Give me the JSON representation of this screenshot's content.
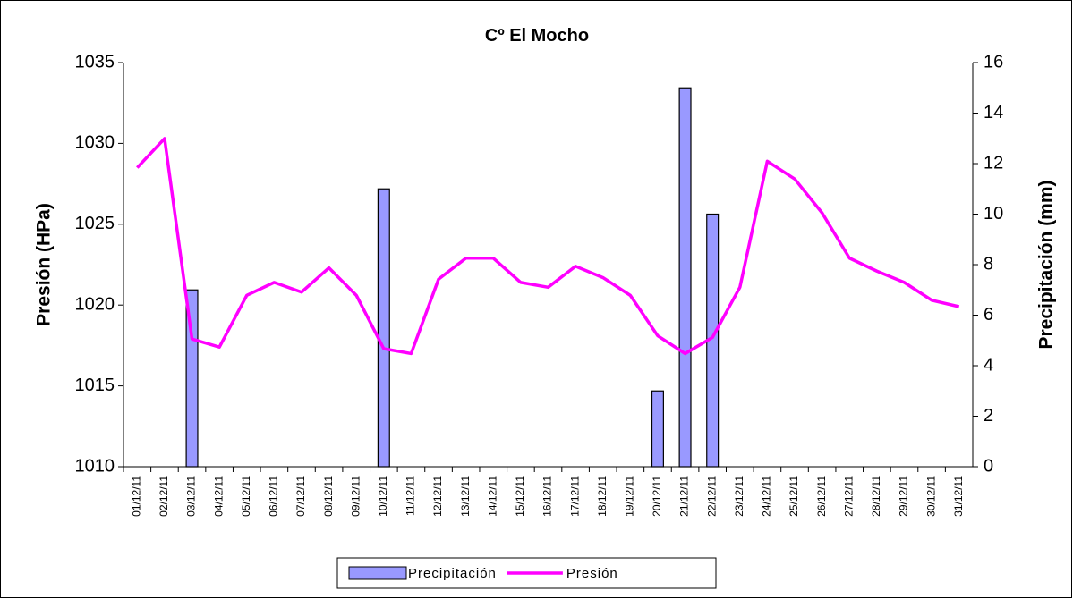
{
  "chart_data": {
    "type": "bar_line",
    "title": "Cº El Mocho",
    "ylabel": "Presión (HPa)",
    "y2label": "Precipitación (mm)",
    "categories": [
      "01/12/11",
      "02/12/11",
      "03/12/11",
      "04/12/11",
      "05/12/11",
      "06/12/11",
      "07/12/11",
      "08/12/11",
      "09/12/11",
      "10/12/11",
      "11/12/11",
      "12/12/11",
      "13/12/11",
      "14/12/11",
      "15/12/11",
      "16/12/11",
      "17/12/11",
      "18/12/11",
      "19/12/11",
      "20/12/11",
      "21/12/11",
      "22/12/11",
      "23/12/11",
      "24/12/11",
      "25/12/11",
      "26/12/11",
      "27/12/11",
      "28/12/11",
      "29/12/11",
      "30/12/11",
      "31/12/11"
    ],
    "series": [
      {
        "name": "Precipitación",
        "type": "bar",
        "axis": "y2",
        "color": "#9999ff",
        "values": [
          0,
          0,
          7,
          0,
          0,
          0,
          0,
          0,
          0,
          11,
          0,
          0,
          0,
          0,
          0,
          0,
          0,
          0,
          0,
          3,
          15,
          10,
          0,
          0,
          0,
          0,
          0,
          0,
          0,
          0,
          0
        ]
      },
      {
        "name": "Presión",
        "type": "line",
        "axis": "y",
        "color": "#ff00ff",
        "values": [
          1028.5,
          1030.3,
          1017.9,
          1017.4,
          1020.6,
          1021.4,
          1020.8,
          1022.3,
          1020.6,
          1017.3,
          1017.0,
          1021.6,
          1022.9,
          1022.9,
          1021.4,
          1021.1,
          1022.4,
          1021.7,
          1020.6,
          1018.1,
          1017.0,
          1018.0,
          1021.1,
          1028.9,
          1027.8,
          1025.7,
          1022.9,
          1022.1,
          1021.4,
          1020.3,
          1019.9
        ]
      }
    ],
    "ylim": [
      1010,
      1035
    ],
    "yticks": [
      1010,
      1015,
      1020,
      1025,
      1030,
      1035
    ],
    "y2lim": [
      0,
      16
    ],
    "y2ticks": [
      0,
      2,
      4,
      6,
      8,
      10,
      12,
      14,
      16
    ],
    "legend": "bottom"
  }
}
